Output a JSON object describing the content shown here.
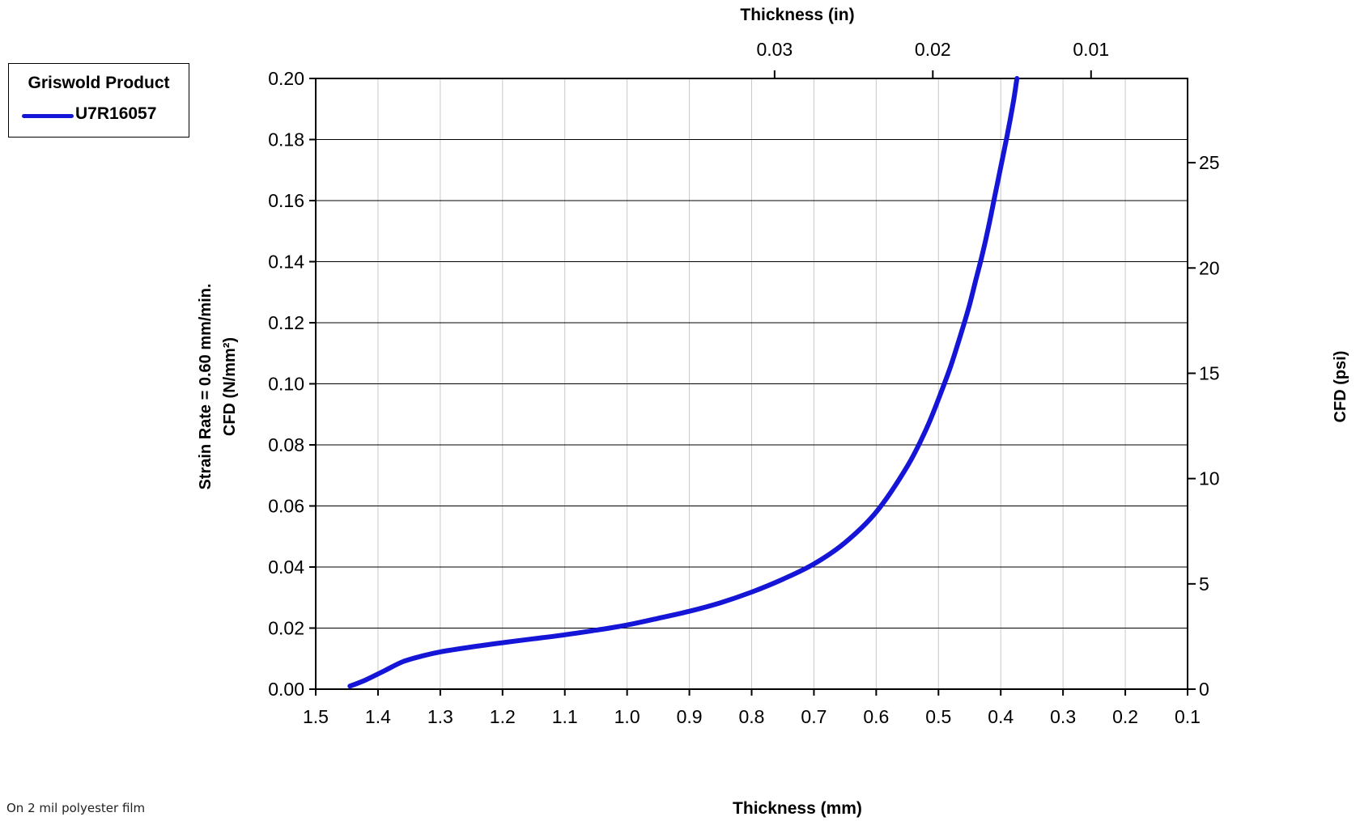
{
  "footnote": "On 2 mil polyester film",
  "legend": {
    "title": "Griswold Product",
    "items": [
      {
        "name": "U7R16057",
        "color": "#1515d8"
      }
    ]
  },
  "colors": {
    "series": "#1515d8",
    "grid": "#c8c8c8",
    "axis": "#000000"
  },
  "chart_data": {
    "type": "line",
    "xlabel": "Thickness (mm)",
    "x2label": "Thickness (in)",
    "ylabel_line1": "Strain Rate = 0.60 mm/min.",
    "ylabel_line2": "CFD (N/mm²)",
    "y2label": "CFD (psi)",
    "xlim": [
      1.5,
      0.1
    ],
    "ylim": [
      0,
      0.2
    ],
    "x2lim_in": [
      0.059,
      0.0039
    ],
    "y2lim_psi": [
      0,
      29.0
    ],
    "grid": true,
    "legend_position": "top-left-outside",
    "x_ticks": [
      "1.5",
      "1.4",
      "1.3",
      "1.2",
      "1.1",
      "1.0",
      "0.9",
      "0.8",
      "0.7",
      "0.6",
      "0.5",
      "0.4",
      "0.3",
      "0.2",
      "0.1"
    ],
    "y_ticks": [
      "0.00",
      "0.02",
      "0.04",
      "0.06",
      "0.08",
      "0.10",
      "0.12",
      "0.14",
      "0.16",
      "0.18",
      "0.20"
    ],
    "x2_ticks": [
      {
        "label": "0.03",
        "value": 0.03
      },
      {
        "label": "0.02",
        "value": 0.02
      },
      {
        "label": "0.01",
        "value": 0.01
      }
    ],
    "y2_ticks": [
      {
        "label": "0",
        "value": 0
      },
      {
        "label": "5",
        "value": 5
      },
      {
        "label": "10",
        "value": 10
      },
      {
        "label": "15",
        "value": 15
      },
      {
        "label": "20",
        "value": 20
      },
      {
        "label": "25",
        "value": 25
      }
    ],
    "series": [
      {
        "name": "U7R16057",
        "x": [
          1.445,
          1.42,
          1.39,
          1.36,
          1.33,
          1.3,
          1.25,
          1.2,
          1.15,
          1.1,
          1.05,
          1.0,
          0.95,
          0.9,
          0.85,
          0.8,
          0.75,
          0.7,
          0.65,
          0.6,
          0.55,
          0.52,
          0.5,
          0.48,
          0.46,
          0.45,
          0.44,
          0.43,
          0.42,
          0.41,
          0.4,
          0.39,
          0.38,
          0.374
        ],
        "y": [
          0.001,
          0.003,
          0.006,
          0.009,
          0.0108,
          0.0122,
          0.0138,
          0.0152,
          0.0165,
          0.0178,
          0.0193,
          0.021,
          0.0232,
          0.0255,
          0.0283,
          0.0318,
          0.036,
          0.041,
          0.048,
          0.058,
          0.073,
          0.085,
          0.095,
          0.106,
          0.119,
          0.126,
          0.134,
          0.142,
          0.151,
          0.161,
          0.171,
          0.181,
          0.192,
          0.2
        ]
      }
    ]
  }
}
